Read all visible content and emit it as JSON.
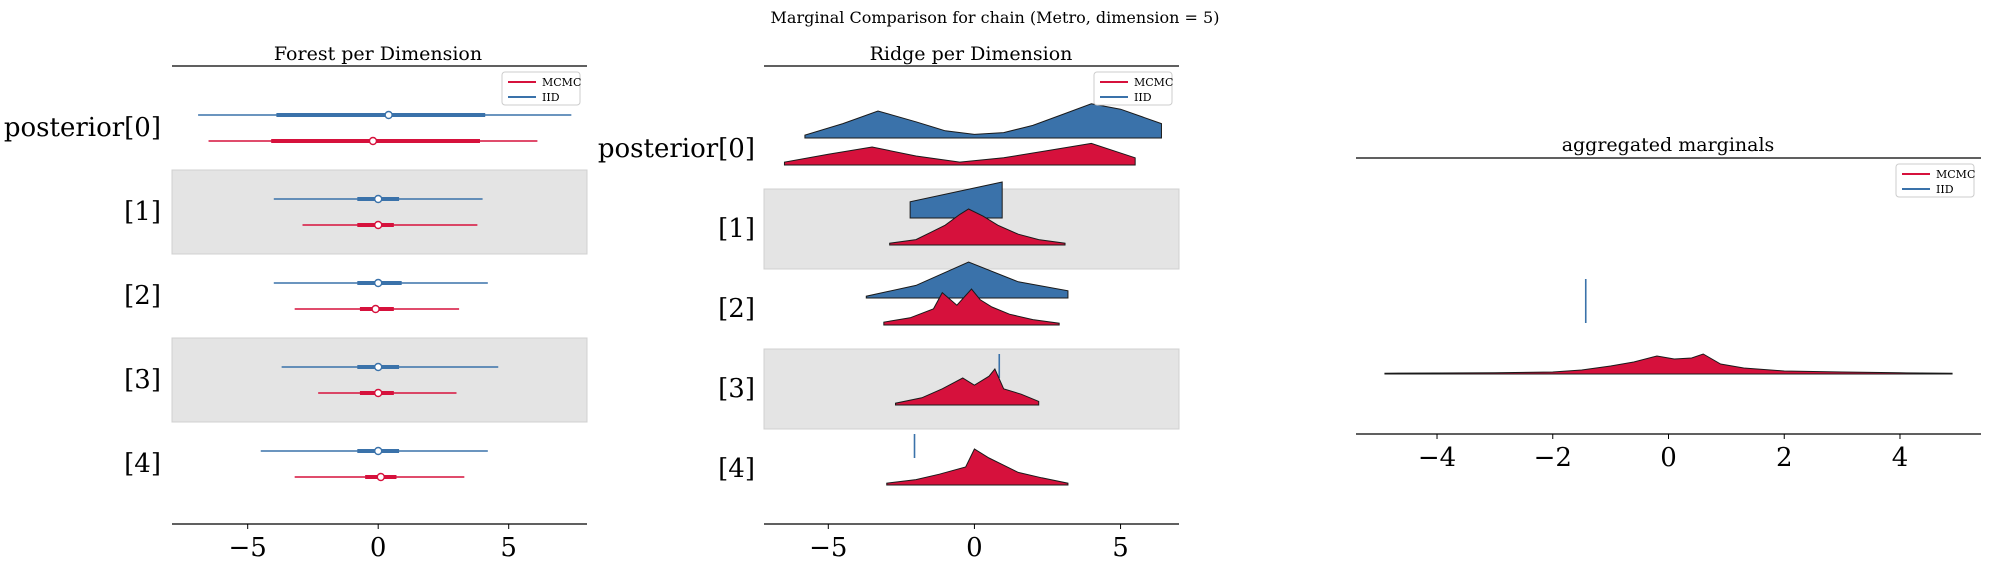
{
  "suptitle": "Marginal Comparison for chain (Metro, dimension = 5)",
  "colors": {
    "mcmc": "#d6113c",
    "iid": "#3a72aa",
    "band": "#e4e4e4"
  },
  "chart_data": [
    {
      "type": "forest",
      "title": "Forest per Dimension",
      "xlim": [
        -7.9,
        8.0
      ],
      "xticks": [
        -5,
        0,
        5
      ],
      "xtick_labels": [
        "−5",
        "0",
        "5"
      ],
      "row_labels": [
        "posterior[0]",
        "[1]",
        "[2]",
        "[3]",
        "[4]"
      ],
      "legend": [
        "MCMC",
        "IID"
      ],
      "legend_loc": "upper right",
      "series": [
        {
          "name": "IID",
          "rows": [
            {
              "lo": -6.9,
              "q1": -3.9,
              "med": 0.4,
              "q3": 4.1,
              "hi": 7.4
            },
            {
              "lo": -4.0,
              "q1": -0.8,
              "med": 0.0,
              "q3": 0.8,
              "hi": 4.0
            },
            {
              "lo": -4.0,
              "q1": -0.8,
              "med": 0.0,
              "q3": 0.9,
              "hi": 4.2
            },
            {
              "lo": -3.7,
              "q1": -0.8,
              "med": 0.0,
              "q3": 0.8,
              "hi": 4.6
            },
            {
              "lo": -4.5,
              "q1": -0.8,
              "med": 0.0,
              "q3": 0.8,
              "hi": 4.2
            }
          ]
        },
        {
          "name": "MCMC",
          "rows": [
            {
              "lo": -6.5,
              "q1": -4.1,
              "med": -0.2,
              "q3": 3.9,
              "hi": 6.1
            },
            {
              "lo": -2.9,
              "q1": -0.8,
              "med": 0.0,
              "q3": 0.6,
              "hi": 3.8
            },
            {
              "lo": -3.2,
              "q1": -0.7,
              "med": -0.1,
              "q3": 0.6,
              "hi": 3.1
            },
            {
              "lo": -2.3,
              "q1": -0.7,
              "med": 0.0,
              "q3": 0.6,
              "hi": 3.0
            },
            {
              "lo": -3.2,
              "q1": -0.5,
              "med": 0.1,
              "q3": 0.7,
              "hi": 3.3
            }
          ]
        }
      ]
    },
    {
      "type": "ridge",
      "title": "Ridge per Dimension",
      "xlim": [
        -7.2,
        7.0
      ],
      "xticks": [
        -5,
        0,
        5
      ],
      "xtick_labels": [
        "−5",
        "0",
        "5"
      ],
      "row_labels": [
        "posterior[0]",
        "[1]",
        "[2]",
        "[3]",
        "[4]"
      ],
      "legend": [
        "MCMC",
        "IID"
      ],
      "legend_loc": "upper right",
      "series": [
        {
          "name": "IID",
          "rows": [
            {
              "x": [
                -5.8,
                -4.5,
                -3.3,
                -2,
                -1,
                0,
                1,
                2,
                3,
                4,
                5,
                6.4
              ],
              "y": [
                0.08,
                0.4,
                0.75,
                0.45,
                0.2,
                0.1,
                0.15,
                0.35,
                0.65,
                0.95,
                0.8,
                0.4
              ]
            },
            {
              "x": [
                -2.2,
                -2.2,
                0.95,
                0.95
              ],
              "y": [
                0.22,
                0.45,
                1.0,
                0.0
              ]
            },
            {
              "x": [
                -3.7,
                -2,
                -0.2,
                1.5,
                3.2
              ],
              "y": [
                0.05,
                0.35,
                1.0,
                0.45,
                0.2
              ]
            },
            {
              "x": [
                0.85,
                0.86
              ],
              "y": [
                0.0,
                0.0
              ]
            },
            {
              "x": [
                -2.05,
                -2.04
              ],
              "y": [
                0.0,
                0.0
              ]
            }
          ]
        },
        {
          "name": "MCMC",
          "rows": [
            {
              "x": [
                -6.5,
                -5,
                -3.5,
                -2,
                -0.5,
                1,
                2.5,
                4,
                5.5
              ],
              "y": [
                0.08,
                0.3,
                0.5,
                0.25,
                0.08,
                0.2,
                0.4,
                0.6,
                0.2
              ]
            },
            {
              "x": [
                -2.9,
                -2,
                -1.5,
                -1,
                -0.5,
                -0.2,
                0.3,
                0.8,
                1.5,
                2.2,
                3.1
              ],
              "y": [
                0.05,
                0.15,
                0.35,
                0.55,
                0.85,
                1.0,
                0.8,
                0.55,
                0.3,
                0.15,
                0.05
              ]
            },
            {
              "x": [
                -3.1,
                -2.2,
                -1.4,
                -1.1,
                -0.6,
                -0.1,
                0.2,
                0.6,
                1.2,
                2,
                2.9
              ],
              "y": [
                0.08,
                0.2,
                0.45,
                0.9,
                0.55,
                1.0,
                0.7,
                0.5,
                0.3,
                0.15,
                0.05
              ]
            },
            {
              "x": [
                -2.7,
                -1.8,
                -1.1,
                -0.4,
                0,
                0.5,
                0.7,
                1.0,
                1.6,
                2.2
              ],
              "y": [
                0.05,
                0.2,
                0.45,
                0.75,
                0.55,
                0.8,
                1.0,
                0.45,
                0.3,
                0.1
              ]
            },
            {
              "x": [
                -3.0,
                -2,
                -1.2,
                -0.3,
                0,
                0.5,
                1,
                1.5,
                2.3,
                3.2
              ],
              "y": [
                0.05,
                0.15,
                0.3,
                0.5,
                1.0,
                0.75,
                0.55,
                0.35,
                0.2,
                0.05
              ]
            }
          ]
        }
      ]
    },
    {
      "type": "area",
      "title": "aggregated marginals",
      "xlim": [
        -5.4,
        5.4
      ],
      "xticks": [
        -4,
        -2,
        0,
        2,
        4
      ],
      "xtick_labels": [
        "−4",
        "−2",
        "0",
        "2",
        "4"
      ],
      "legend": [
        "MCMC",
        "IID"
      ],
      "legend_loc": "upper right",
      "series": [
        {
          "name": "IID",
          "x": [
            -1.43,
            -1.42
          ],
          "y": [
            0,
            0
          ],
          "spike_x": -1.43
        },
        {
          "name": "MCMC",
          "x": [
            -4.9,
            -4,
            -3,
            -2,
            -1.5,
            -1,
            -0.6,
            -0.2,
            0.1,
            0.4,
            0.6,
            0.9,
            1.3,
            2,
            3,
            4,
            4.9
          ],
          "y": [
            0.04,
            0.05,
            0.06,
            0.1,
            0.2,
            0.4,
            0.6,
            0.9,
            0.75,
            0.8,
            1.0,
            0.5,
            0.3,
            0.15,
            0.1,
            0.06,
            0.04
          ]
        }
      ]
    }
  ]
}
